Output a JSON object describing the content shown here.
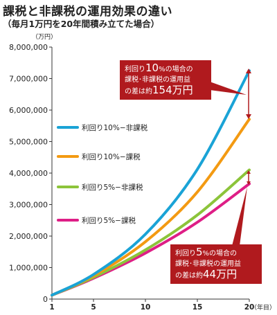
{
  "title": "課税と非課税の運用効果の違い",
  "subtitle": "（毎月1万円を20年間積み立てた場合）",
  "callouts": [
    {
      "pre": "利回り",
      "rate": "10",
      "rate_suffix": "%の場合の",
      "line2": "課税･非課税の運用益",
      "line3_pre": "の差は約",
      "amount": "154万円"
    },
    {
      "pre": "利回り",
      "rate": "5",
      "rate_suffix": "%の場合の",
      "line2": "課税･非課税の運用益",
      "line3_pre": "の差は約",
      "amount": "44万円"
    }
  ],
  "colors": {
    "series_10_tax_free": "#1aa3d6",
    "series_10_taxed": "#f39a12",
    "series_5_tax_free": "#8cc43a",
    "series_5_taxed": "#de1e86",
    "callout": "#b01a1e",
    "axis": "#333333",
    "grid": "#dddddd"
  },
  "chart_data": {
    "type": "line",
    "title": "課税と非課税の運用効果の違い",
    "subtitle": "（毎月1万円を20年間積み立てた場合）",
    "xlabel": "（年目）",
    "ylabel": "（万円）",
    "x": [
      1,
      5,
      10,
      15,
      20
    ],
    "x_tick_labels": [
      "1",
      "5",
      "10",
      "15",
      "20"
    ],
    "xlim": [
      1,
      20
    ],
    "ylim": [
      0,
      8000000
    ],
    "y_ticks": [
      0,
      1000000,
      2000000,
      3000000,
      4000000,
      5000000,
      6000000,
      7000000,
      8000000
    ],
    "y_tick_labels": [
      "0",
      "1,000,000",
      "2,000,000",
      "3,000,000",
      "4,000,000",
      "5,000,000",
      "6,000,000",
      "7,000,000",
      "8,000,000"
    ],
    "grid": false,
    "legend_position": "left-middle",
    "series": [
      {
        "name": "利回り10%−非課税",
        "values": [
          126000,
          780000,
          2060000,
          4120000,
          7250000
        ]
      },
      {
        "name": "利回り10%−課税",
        "values": [
          125000,
          740000,
          1820000,
          3400000,
          5710000
        ]
      },
      {
        "name": "利回り5%−非課税",
        "values": [
          123000,
          690000,
          1560000,
          2670000,
          4100000
        ]
      },
      {
        "name": "利回り5%−課税",
        "values": [
          122000,
          660000,
          1460000,
          2440000,
          3660000
        ]
      }
    ]
  }
}
